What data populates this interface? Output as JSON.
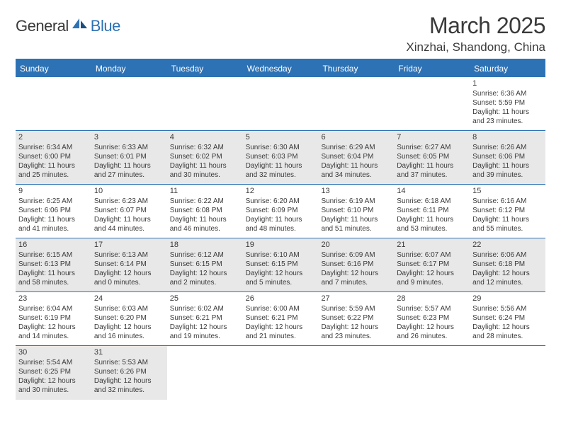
{
  "logo": {
    "text1": "General",
    "text2": "Blue"
  },
  "title": "March 2025",
  "location": "Xinzhai, Shandong, China",
  "colors": {
    "accent": "#2d72b5",
    "text": "#3a3a3a",
    "shaded": "#e8e8e8"
  },
  "dayHeaders": [
    "Sunday",
    "Monday",
    "Tuesday",
    "Wednesday",
    "Thursday",
    "Friday",
    "Saturday"
  ],
  "weeks": [
    [
      {
        "num": "",
        "lines": [],
        "shaded": false
      },
      {
        "num": "",
        "lines": [],
        "shaded": false
      },
      {
        "num": "",
        "lines": [],
        "shaded": false
      },
      {
        "num": "",
        "lines": [],
        "shaded": false
      },
      {
        "num": "",
        "lines": [],
        "shaded": false
      },
      {
        "num": "",
        "lines": [],
        "shaded": false
      },
      {
        "num": "1",
        "lines": [
          "Sunrise: 6:36 AM",
          "Sunset: 5:59 PM",
          "Daylight: 11 hours",
          "and 23 minutes."
        ],
        "shaded": false
      }
    ],
    [
      {
        "num": "2",
        "lines": [
          "Sunrise: 6:34 AM",
          "Sunset: 6:00 PM",
          "Daylight: 11 hours",
          "and 25 minutes."
        ],
        "shaded": true
      },
      {
        "num": "3",
        "lines": [
          "Sunrise: 6:33 AM",
          "Sunset: 6:01 PM",
          "Daylight: 11 hours",
          "and 27 minutes."
        ],
        "shaded": true
      },
      {
        "num": "4",
        "lines": [
          "Sunrise: 6:32 AM",
          "Sunset: 6:02 PM",
          "Daylight: 11 hours",
          "and 30 minutes."
        ],
        "shaded": true
      },
      {
        "num": "5",
        "lines": [
          "Sunrise: 6:30 AM",
          "Sunset: 6:03 PM",
          "Daylight: 11 hours",
          "and 32 minutes."
        ],
        "shaded": true
      },
      {
        "num": "6",
        "lines": [
          "Sunrise: 6:29 AM",
          "Sunset: 6:04 PM",
          "Daylight: 11 hours",
          "and 34 minutes."
        ],
        "shaded": true
      },
      {
        "num": "7",
        "lines": [
          "Sunrise: 6:27 AM",
          "Sunset: 6:05 PM",
          "Daylight: 11 hours",
          "and 37 minutes."
        ],
        "shaded": true
      },
      {
        "num": "8",
        "lines": [
          "Sunrise: 6:26 AM",
          "Sunset: 6:06 PM",
          "Daylight: 11 hours",
          "and 39 minutes."
        ],
        "shaded": true
      }
    ],
    [
      {
        "num": "9",
        "lines": [
          "Sunrise: 6:25 AM",
          "Sunset: 6:06 PM",
          "Daylight: 11 hours",
          "and 41 minutes."
        ],
        "shaded": false
      },
      {
        "num": "10",
        "lines": [
          "Sunrise: 6:23 AM",
          "Sunset: 6:07 PM",
          "Daylight: 11 hours",
          "and 44 minutes."
        ],
        "shaded": false
      },
      {
        "num": "11",
        "lines": [
          "Sunrise: 6:22 AM",
          "Sunset: 6:08 PM",
          "Daylight: 11 hours",
          "and 46 minutes."
        ],
        "shaded": false
      },
      {
        "num": "12",
        "lines": [
          "Sunrise: 6:20 AM",
          "Sunset: 6:09 PM",
          "Daylight: 11 hours",
          "and 48 minutes."
        ],
        "shaded": false
      },
      {
        "num": "13",
        "lines": [
          "Sunrise: 6:19 AM",
          "Sunset: 6:10 PM",
          "Daylight: 11 hours",
          "and 51 minutes."
        ],
        "shaded": false
      },
      {
        "num": "14",
        "lines": [
          "Sunrise: 6:18 AM",
          "Sunset: 6:11 PM",
          "Daylight: 11 hours",
          "and 53 minutes."
        ],
        "shaded": false
      },
      {
        "num": "15",
        "lines": [
          "Sunrise: 6:16 AM",
          "Sunset: 6:12 PM",
          "Daylight: 11 hours",
          "and 55 minutes."
        ],
        "shaded": false
      }
    ],
    [
      {
        "num": "16",
        "lines": [
          "Sunrise: 6:15 AM",
          "Sunset: 6:13 PM",
          "Daylight: 11 hours",
          "and 58 minutes."
        ],
        "shaded": true
      },
      {
        "num": "17",
        "lines": [
          "Sunrise: 6:13 AM",
          "Sunset: 6:14 PM",
          "Daylight: 12 hours",
          "and 0 minutes."
        ],
        "shaded": true
      },
      {
        "num": "18",
        "lines": [
          "Sunrise: 6:12 AM",
          "Sunset: 6:15 PM",
          "Daylight: 12 hours",
          "and 2 minutes."
        ],
        "shaded": true
      },
      {
        "num": "19",
        "lines": [
          "Sunrise: 6:10 AM",
          "Sunset: 6:15 PM",
          "Daylight: 12 hours",
          "and 5 minutes."
        ],
        "shaded": true
      },
      {
        "num": "20",
        "lines": [
          "Sunrise: 6:09 AM",
          "Sunset: 6:16 PM",
          "Daylight: 12 hours",
          "and 7 minutes."
        ],
        "shaded": true
      },
      {
        "num": "21",
        "lines": [
          "Sunrise: 6:07 AM",
          "Sunset: 6:17 PM",
          "Daylight: 12 hours",
          "and 9 minutes."
        ],
        "shaded": true
      },
      {
        "num": "22",
        "lines": [
          "Sunrise: 6:06 AM",
          "Sunset: 6:18 PM",
          "Daylight: 12 hours",
          "and 12 minutes."
        ],
        "shaded": true
      }
    ],
    [
      {
        "num": "23",
        "lines": [
          "Sunrise: 6:04 AM",
          "Sunset: 6:19 PM",
          "Daylight: 12 hours",
          "and 14 minutes."
        ],
        "shaded": false
      },
      {
        "num": "24",
        "lines": [
          "Sunrise: 6:03 AM",
          "Sunset: 6:20 PM",
          "Daylight: 12 hours",
          "and 16 minutes."
        ],
        "shaded": false
      },
      {
        "num": "25",
        "lines": [
          "Sunrise: 6:02 AM",
          "Sunset: 6:21 PM",
          "Daylight: 12 hours",
          "and 19 minutes."
        ],
        "shaded": false
      },
      {
        "num": "26",
        "lines": [
          "Sunrise: 6:00 AM",
          "Sunset: 6:21 PM",
          "Daylight: 12 hours",
          "and 21 minutes."
        ],
        "shaded": false
      },
      {
        "num": "27",
        "lines": [
          "Sunrise: 5:59 AM",
          "Sunset: 6:22 PM",
          "Daylight: 12 hours",
          "and 23 minutes."
        ],
        "shaded": false
      },
      {
        "num": "28",
        "lines": [
          "Sunrise: 5:57 AM",
          "Sunset: 6:23 PM",
          "Daylight: 12 hours",
          "and 26 minutes."
        ],
        "shaded": false
      },
      {
        "num": "29",
        "lines": [
          "Sunrise: 5:56 AM",
          "Sunset: 6:24 PM",
          "Daylight: 12 hours",
          "and 28 minutes."
        ],
        "shaded": false
      }
    ],
    [
      {
        "num": "30",
        "lines": [
          "Sunrise: 5:54 AM",
          "Sunset: 6:25 PM",
          "Daylight: 12 hours",
          "and 30 minutes."
        ],
        "shaded": true
      },
      {
        "num": "31",
        "lines": [
          "Sunrise: 5:53 AM",
          "Sunset: 6:26 PM",
          "Daylight: 12 hours",
          "and 32 minutes."
        ],
        "shaded": true
      },
      {
        "num": "",
        "lines": [],
        "shaded": false
      },
      {
        "num": "",
        "lines": [],
        "shaded": false
      },
      {
        "num": "",
        "lines": [],
        "shaded": false
      },
      {
        "num": "",
        "lines": [],
        "shaded": false
      },
      {
        "num": "",
        "lines": [],
        "shaded": false
      }
    ]
  ]
}
